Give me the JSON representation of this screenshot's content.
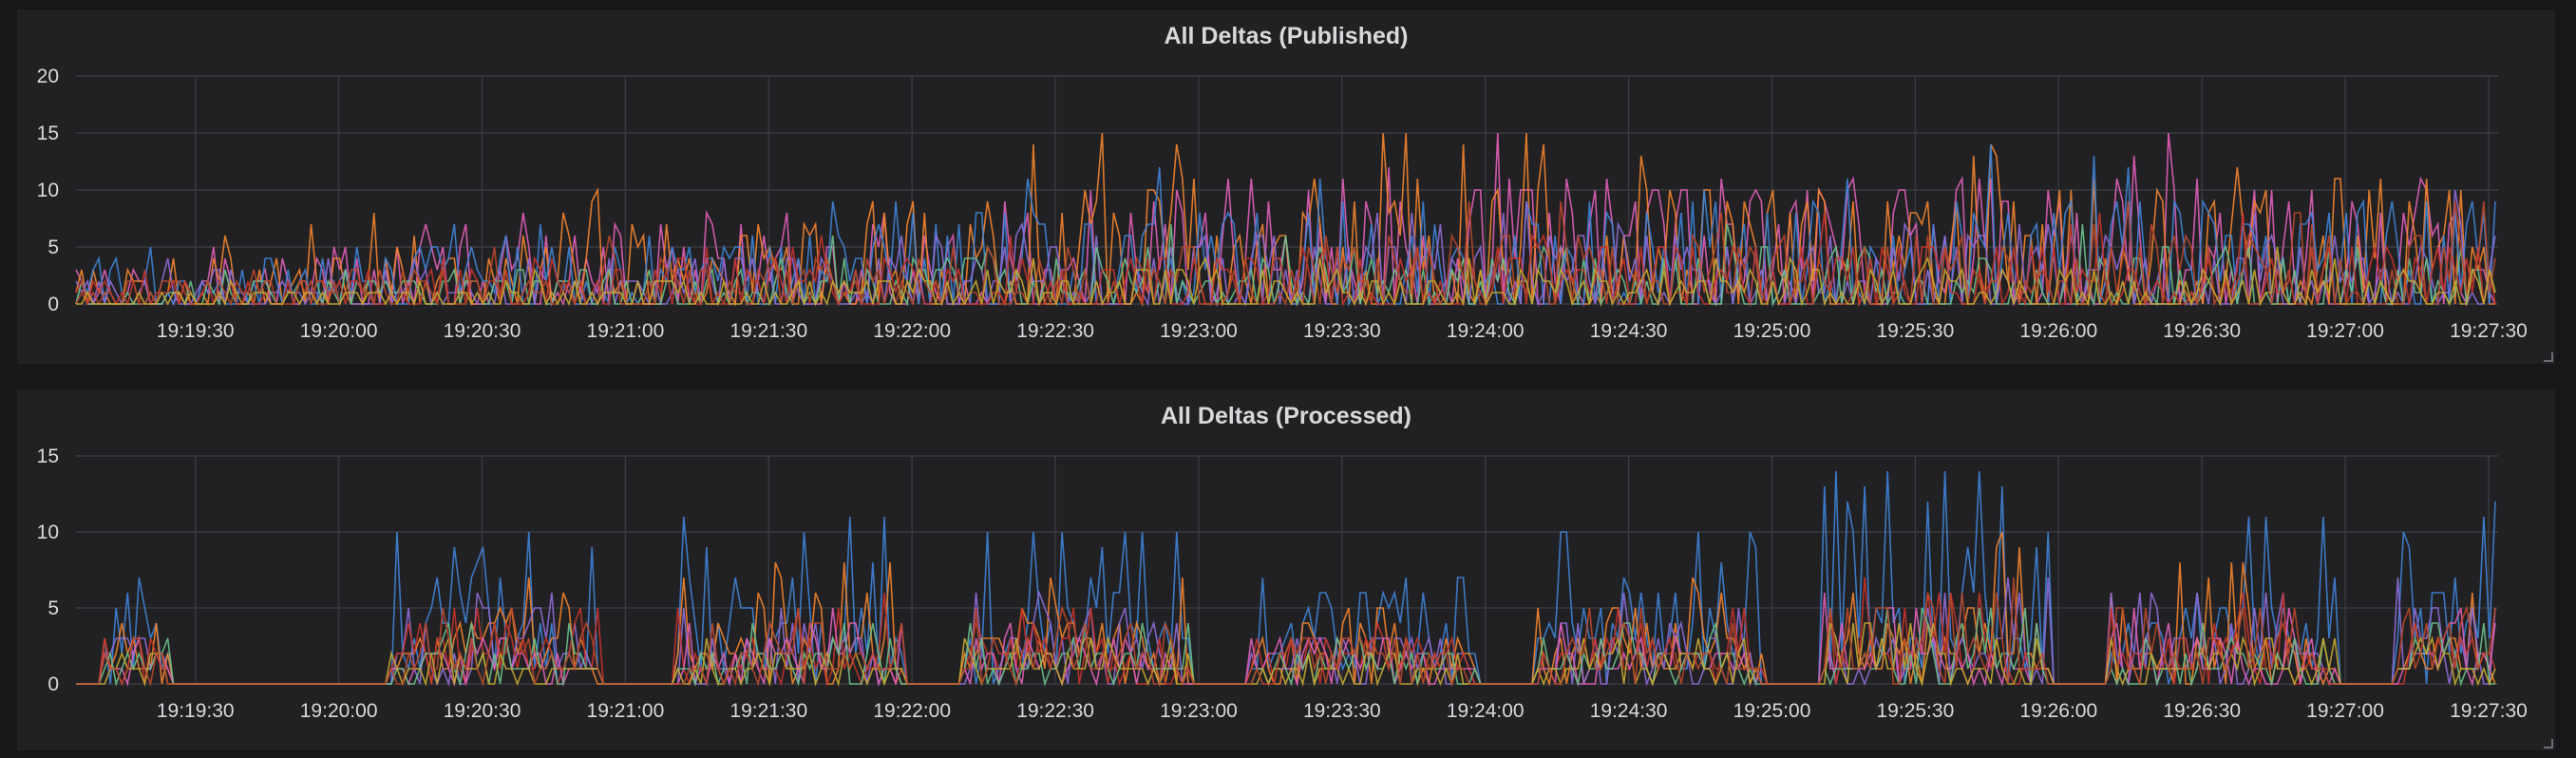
{
  "chart_data": [
    {
      "type": "line",
      "title": "All Deltas (Published)",
      "xlabel": "",
      "ylabel": "",
      "ylim": [
        0,
        20
      ],
      "yticks": [
        0,
        5,
        10,
        15,
        20
      ],
      "xlim": [
        "19:19:05",
        "19:27:32"
      ],
      "xticks": [
        "19:19:30",
        "19:20:00",
        "19:20:30",
        "19:21:00",
        "19:21:30",
        "19:22:00",
        "19:22:30",
        "19:23:00",
        "19:23:30",
        "19:24:00",
        "19:24:30",
        "19:25:00",
        "19:25:30",
        "19:26:00",
        "19:26:30",
        "19:27:00",
        "19:27:30"
      ],
      "grid": true,
      "legend": "none",
      "series_colors": [
        "#e05fb8",
        "#f2832c",
        "#3f83d6",
        "#8f6bd6",
        "#6bbf8a",
        "#c4332b",
        "#b8472a",
        "#c7a930"
      ],
      "peaks": [
        {
          "series": 1,
          "x": "19:22:55",
          "y": 14
        },
        {
          "series": 1,
          "x": "19:23:38",
          "y": 15
        },
        {
          "series": 1,
          "x": "19:23:43",
          "y": 15
        },
        {
          "series": 1,
          "x": "19:24:32",
          "y": 13
        },
        {
          "series": 0,
          "x": "19:23:30",
          "y": 11
        },
        {
          "series": 0,
          "x": "19:25:43",
          "y": 11
        },
        {
          "series": 1,
          "x": "19:26:57",
          "y": 11
        }
      ]
    },
    {
      "type": "line",
      "title": "All Deltas (Processed)",
      "xlabel": "",
      "ylabel": "",
      "ylim": [
        0,
        15
      ],
      "yticks": [
        0,
        5,
        10,
        15
      ],
      "xlim": [
        "19:19:05",
        "19:27:32"
      ],
      "xticks": [
        "19:19:30",
        "19:20:00",
        "19:20:30",
        "19:21:00",
        "19:21:30",
        "19:22:00",
        "19:22:30",
        "19:23:00",
        "19:23:30",
        "19:24:00",
        "19:24:30",
        "19:25:00",
        "19:25:30",
        "19:26:00",
        "19:26:30",
        "19:27:00",
        "19:27:30"
      ],
      "grid": true,
      "legend": "none",
      "series_colors": [
        "#3f83d6",
        "#f2832c",
        "#8f6bd6",
        "#c4332b",
        "#e05fb8",
        "#6bbf8a",
        "#c7a930",
        "#b8472a"
      ],
      "bursts": [
        {
          "start": "19:19:10",
          "end": "19:19:25",
          "peak": 7
        },
        {
          "start": "19:20:10",
          "end": "19:20:55",
          "peak": 10
        },
        {
          "start": "19:21:10",
          "end": "19:21:58",
          "peak": 11
        },
        {
          "start": "19:22:10",
          "end": "19:22:58",
          "peak": 10
        },
        {
          "start": "19:23:10",
          "end": "19:23:58",
          "peak": 7
        },
        {
          "start": "19:24:10",
          "end": "19:24:58",
          "peak": 10
        },
        {
          "start": "19:25:10",
          "end": "19:25:58",
          "peak": 14
        },
        {
          "start": "19:26:10",
          "end": "19:26:58",
          "peak": 11
        },
        {
          "start": "19:27:10",
          "end": "19:27:32",
          "peak": 12
        }
      ]
    }
  ]
}
